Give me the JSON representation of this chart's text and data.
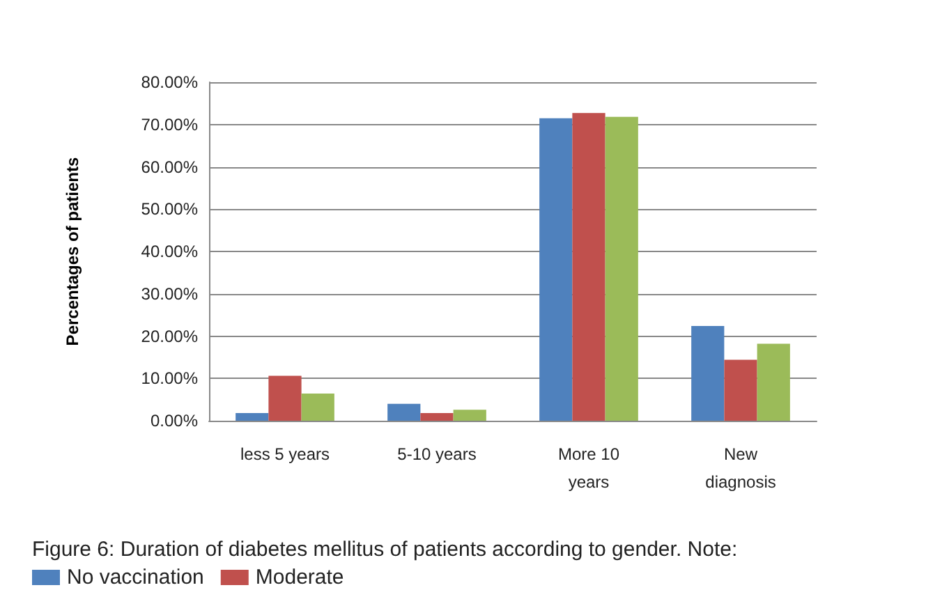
{
  "chart_data": {
    "type": "bar",
    "title": "Figure 6: Duration of diabetes mellitus of patients according to gender. Note:",
    "ylabel": "Percentages of patients",
    "categories": [
      "less 5 years",
      "5-10 years",
      "More 10\nyears",
      "New\ndiagnosis"
    ],
    "series": [
      {
        "name": "No vaccination",
        "color": "#4f81bd",
        "values": [
          1.8,
          4.0,
          71.5,
          22.4
        ]
      },
      {
        "name": "Moderate",
        "color": "#c0504d",
        "values": [
          10.6,
          1.8,
          72.7,
          14.4
        ]
      },
      {
        "color": "#9bbb59",
        "values": [
          6.4,
          2.6,
          71.8,
          18.2
        ]
      }
    ],
    "ylim": [
      0,
      80
    ],
    "yticks": [
      {
        "value": 0,
        "label": "0.00%"
      },
      {
        "value": 10,
        "label": "10.00%"
      },
      {
        "value": 20,
        "label": "20.00%"
      },
      {
        "value": 30,
        "label": "30.00%"
      },
      {
        "value": 40,
        "label": "40.00%"
      },
      {
        "value": 50,
        "label": "50.00%"
      },
      {
        "value": 60,
        "label": "60.00%"
      },
      {
        "value": 70,
        "label": "70.00%"
      },
      {
        "value": 80,
        "label": "80.00%"
      }
    ],
    "grid": "y",
    "legend": "bottom left"
  }
}
